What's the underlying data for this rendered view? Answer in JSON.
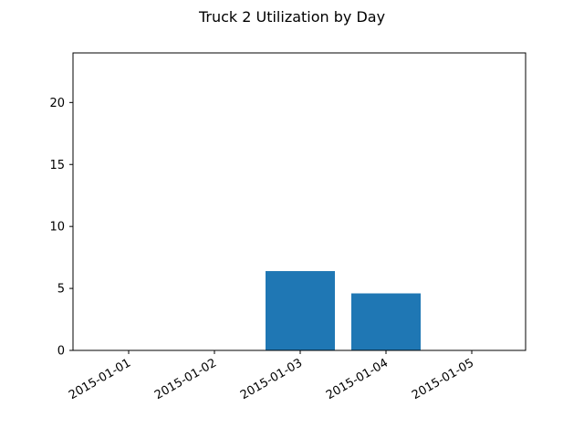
{
  "chart_data": {
    "type": "bar",
    "title": "Truck 2 Utilization by Day",
    "xlabel": "",
    "ylabel": "",
    "categories": [
      "2015-01-01",
      "2015-01-02",
      "2015-01-03",
      "2015-01-04",
      "2015-01-05"
    ],
    "values": [
      0,
      0,
      6.4,
      4.6,
      0
    ],
    "ylim": [
      0,
      24
    ],
    "yticks": [
      "0",
      "5",
      "10",
      "15",
      "20"
    ],
    "grid": false,
    "legend": "none",
    "bar_color": "#1f77b4"
  }
}
